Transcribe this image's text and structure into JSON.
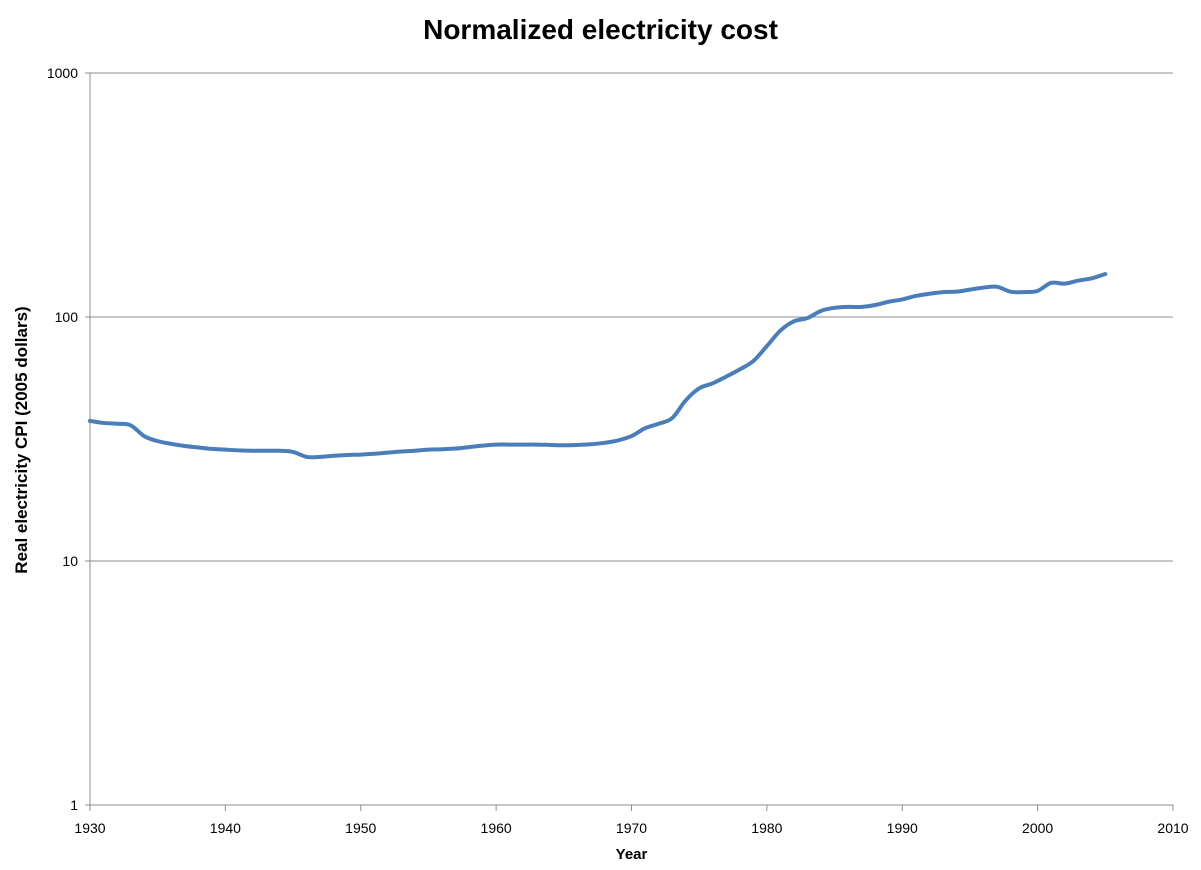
{
  "chart_data": {
    "type": "line",
    "title": "Normalized electricity cost",
    "xlabel": "Year",
    "ylabel": "Real electricity CPI (2005 dollars)",
    "xlim": [
      1930,
      2010
    ],
    "ylim": [
      1,
      1000
    ],
    "yscale": "log",
    "grid": "horizontal",
    "xticks": [
      "1930",
      "1940",
      "1950",
      "1960",
      "1970",
      "1980",
      "1990",
      "2000",
      "2010"
    ],
    "yticks": [
      "1",
      "10",
      "100",
      "1000"
    ],
    "series": [
      {
        "color": "#4A7EBB",
        "x": [
          1930,
          1931,
          1932,
          1933,
          1934,
          1935,
          1936,
          1937,
          1938,
          1939,
          1940,
          1941,
          1942,
          1943,
          1944,
          1945,
          1946,
          1947,
          1948,
          1949,
          1950,
          1951,
          1952,
          1953,
          1954,
          1955,
          1956,
          1957,
          1958,
          1959,
          1960,
          1961,
          1962,
          1963,
          1964,
          1965,
          1966,
          1967,
          1968,
          1969,
          1970,
          1971,
          1972,
          1973,
          1974,
          1975,
          1976,
          1977,
          1978,
          1979,
          1980,
          1981,
          1982,
          1983,
          1984,
          1985,
          1986,
          1987,
          1988,
          1989,
          1990,
          1991,
          1992,
          1993,
          1994,
          1995,
          1996,
          1997,
          1998,
          1999,
          2000,
          2001,
          2002,
          2003,
          2004,
          2005
        ],
        "y": [
          37.5,
          36.8,
          36.5,
          36.0,
          32.5,
          31.0,
          30.2,
          29.6,
          29.2,
          28.8,
          28.6,
          28.4,
          28.3,
          28.3,
          28.3,
          28.0,
          26.7,
          26.7,
          27.0,
          27.2,
          27.3,
          27.5,
          27.8,
          28.1,
          28.3,
          28.6,
          28.7,
          28.9,
          29.3,
          29.7,
          30.0,
          30.0,
          30.0,
          30.0,
          29.9,
          29.8,
          29.9,
          30.1,
          30.5,
          31.2,
          32.5,
          35.0,
          36.5,
          38.5,
          45.5,
          51.0,
          53.5,
          57.0,
          61.0,
          66.0,
          76.0,
          88.0,
          96.0,
          99.0,
          106.0,
          109.0,
          110.0,
          110.0,
          112.0,
          115.5,
          118.0,
          122.0,
          124.5,
          126.5,
          127.0,
          129.5,
          132.0,
          133.0,
          127.0,
          126.5,
          128.0,
          138.0,
          137.0,
          141.0,
          144.0,
          150.0
        ]
      }
    ]
  }
}
